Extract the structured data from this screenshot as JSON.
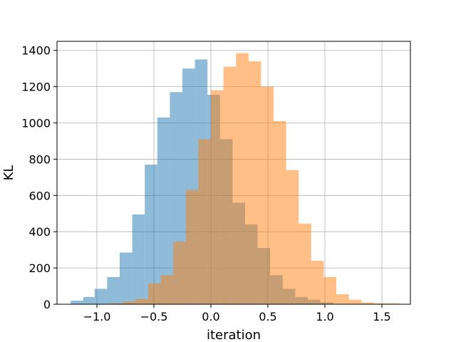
{
  "chart_data": {
    "type": "bar",
    "title": "",
    "xlabel": "iteration",
    "ylabel": "KL",
    "xlim": [
      -1.35,
      1.75
    ],
    "ylim": [
      0,
      1450
    ],
    "xticks": [
      -1.0,
      -0.5,
      0.0,
      0.5,
      1.0,
      1.5
    ],
    "xtick_labels": [
      "−1.0",
      "−0.5",
      "0.0",
      "0.5",
      "1.0",
      "1.5"
    ],
    "yticks": [
      0,
      200,
      400,
      600,
      800,
      1000,
      1200,
      1400
    ],
    "ytick_labels": [
      "0",
      "200",
      "400",
      "600",
      "800",
      "1000",
      "1200",
      "1400"
    ],
    "grid": true,
    "series": [
      {
        "color": "#1f77b4",
        "opacity": 0.5,
        "bins": [
          {
            "x0": -1.23,
            "x1": -1.12,
            "y": 20
          },
          {
            "x0": -1.12,
            "x1": -1.02,
            "y": 40
          },
          {
            "x0": -1.02,
            "x1": -0.91,
            "y": 85
          },
          {
            "x0": -0.91,
            "x1": -0.8,
            "y": 150
          },
          {
            "x0": -0.8,
            "x1": -0.69,
            "y": 285
          },
          {
            "x0": -0.69,
            "x1": -0.58,
            "y": 495
          },
          {
            "x0": -0.58,
            "x1": -0.47,
            "y": 770
          },
          {
            "x0": -0.47,
            "x1": -0.36,
            "y": 1030
          },
          {
            "x0": -0.36,
            "x1": -0.25,
            "y": 1170
          },
          {
            "x0": -0.25,
            "x1": -0.14,
            "y": 1300
          },
          {
            "x0": -0.14,
            "x1": -0.03,
            "y": 1350
          },
          {
            "x0": -0.03,
            "x1": 0.08,
            "y": 1155
          },
          {
            "x0": 0.08,
            "x1": 0.19,
            "y": 910
          },
          {
            "x0": 0.19,
            "x1": 0.3,
            "y": 560
          },
          {
            "x0": 0.3,
            "x1": 0.41,
            "y": 440
          },
          {
            "x0": 0.41,
            "x1": 0.52,
            "y": 310
          },
          {
            "x0": 0.52,
            "x1": 0.63,
            "y": 160
          },
          {
            "x0": 0.63,
            "x1": 0.74,
            "y": 85
          },
          {
            "x0": 0.74,
            "x1": 0.85,
            "y": 40
          },
          {
            "x0": 0.85,
            "x1": 0.96,
            "y": 25
          },
          {
            "x0": 0.96,
            "x1": 1.07,
            "y": 10
          }
        ]
      },
      {
        "color": "#ff7f0e",
        "opacity": 0.5,
        "bins": [
          {
            "x0": -0.88,
            "x1": -0.77,
            "y": 5
          },
          {
            "x0": -0.77,
            "x1": -0.66,
            "y": 15
          },
          {
            "x0": -0.66,
            "x1": -0.55,
            "y": 30
          },
          {
            "x0": -0.55,
            "x1": -0.44,
            "y": 115
          },
          {
            "x0": -0.44,
            "x1": -0.33,
            "y": 160
          },
          {
            "x0": -0.33,
            "x1": -0.22,
            "y": 345
          },
          {
            "x0": -0.22,
            "x1": -0.11,
            "y": 630
          },
          {
            "x0": -0.11,
            "x1": 0.0,
            "y": 910
          },
          {
            "x0": 0.0,
            "x1": 0.11,
            "y": 1180
          },
          {
            "x0": 0.11,
            "x1": 0.22,
            "y": 1310
          },
          {
            "x0": 0.22,
            "x1": 0.33,
            "y": 1385
          },
          {
            "x0": 0.33,
            "x1": 0.44,
            "y": 1340
          },
          {
            "x0": 0.44,
            "x1": 0.55,
            "y": 1200
          },
          {
            "x0": 0.55,
            "x1": 0.66,
            "y": 1010
          },
          {
            "x0": 0.66,
            "x1": 0.77,
            "y": 740
          },
          {
            "x0": 0.77,
            "x1": 0.88,
            "y": 445
          },
          {
            "x0": 0.88,
            "x1": 0.99,
            "y": 240
          },
          {
            "x0": 0.99,
            "x1": 1.1,
            "y": 150
          },
          {
            "x0": 1.1,
            "x1": 1.21,
            "y": 55
          },
          {
            "x0": 1.21,
            "x1": 1.32,
            "y": 25
          },
          {
            "x0": 1.32,
            "x1": 1.43,
            "y": 10
          },
          {
            "x0": 1.43,
            "x1": 1.54,
            "y": 5
          },
          {
            "x0": 1.54,
            "x1": 1.65,
            "y": 5
          }
        ]
      }
    ]
  }
}
